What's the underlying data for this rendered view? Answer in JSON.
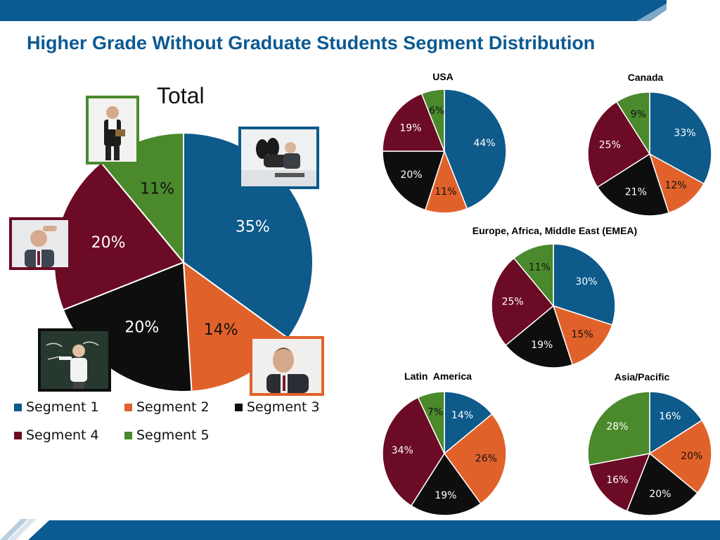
{
  "title": "Higher Grade Without Graduate Students Segment Distribution",
  "colors": {
    "segment_1": "#0d5a8b",
    "segment_2": "#e0622a",
    "segment_3": "#0e0e0e",
    "segment_4": "#6c0b25",
    "segment_5": "#4a8a2c",
    "title": "#0c5a92",
    "banner": "#0c5a92"
  },
  "legend": [
    "Segment 1",
    "Segment 2",
    "Segment 3",
    "Segment 4",
    "Segment 5"
  ],
  "photos": [
    {
      "name": "photo-man-with-clipboard",
      "segment": "Segment 5"
    },
    {
      "name": "photo-man-feet-on-desk",
      "segment": "Segment 1"
    },
    {
      "name": "photo-man-scratching-head",
      "segment": "Segment 4"
    },
    {
      "name": "photo-teacher-at-blackboard",
      "segment": "Segment 3"
    },
    {
      "name": "photo-smiling-man",
      "segment": "Segment 2"
    }
  ],
  "chart_data": [
    {
      "type": "pie",
      "title": "Total",
      "categories": [
        "Segment 1",
        "Segment 2",
        "Segment 3",
        "Segment 4",
        "Segment 5"
      ],
      "values": [
        35,
        14,
        20,
        20,
        11
      ],
      "labels": [
        "35%",
        "14%",
        "20%",
        "20%",
        "11%"
      ]
    },
    {
      "type": "pie",
      "title": "USA",
      "categories": [
        "Segment 1",
        "Segment 2",
        "Segment 3",
        "Segment 4",
        "Segment 5"
      ],
      "values": [
        44,
        11,
        20,
        19,
        6
      ],
      "labels": [
        "44%",
        "11%",
        "20%",
        "19%",
        "6%"
      ]
    },
    {
      "type": "pie",
      "title": "Canada",
      "categories": [
        "Segment 1",
        "Segment 2",
        "Segment 3",
        "Segment 4",
        "Segment 5"
      ],
      "values": [
        33,
        12,
        21,
        25,
        9
      ],
      "labels": [
        "33%",
        "12%",
        "21%",
        "25%",
        "9%"
      ]
    },
    {
      "type": "pie",
      "title": "Europe, Africa, Middle East (EMEA)",
      "categories": [
        "Segment 1",
        "Segment 2",
        "Segment 3",
        "Segment 4",
        "Segment 5"
      ],
      "values": [
        30,
        15,
        19,
        25,
        11
      ],
      "labels": [
        "30%",
        "15%",
        "19%",
        "25%",
        "11%"
      ]
    },
    {
      "type": "pie",
      "title": "Latin  America",
      "categories": [
        "Segment 1",
        "Segment 2",
        "Segment 3",
        "Segment 4",
        "Segment 5"
      ],
      "values": [
        14,
        26,
        19,
        34,
        7
      ],
      "labels": [
        "14%",
        "26%",
        "19%",
        "34%",
        "7%"
      ]
    },
    {
      "type": "pie",
      "title": "Asia/Pacific",
      "categories": [
        "Segment 1",
        "Segment 2",
        "Segment 3",
        "Segment 4",
        "Segment 5"
      ],
      "values": [
        16,
        20,
        20,
        16,
        28
      ],
      "labels": [
        "16%",
        "20%",
        "20%",
        "16%",
        "28%"
      ]
    }
  ]
}
